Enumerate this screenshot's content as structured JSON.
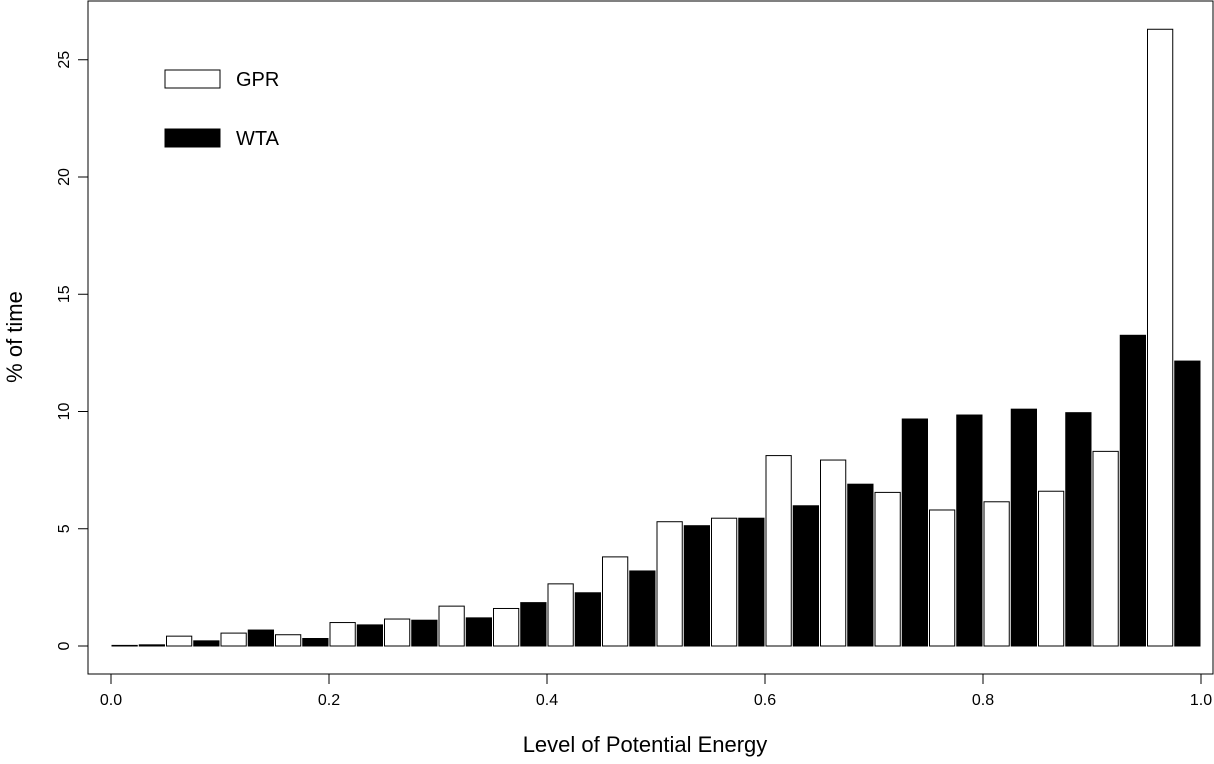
{
  "chart_data": {
    "type": "bar",
    "xlabel": "Level of Potential Energy",
    "ylabel": "% of time",
    "xlim": [
      0.0,
      1.0
    ],
    "ylim": [
      0,
      26.3
    ],
    "x_ticks": [
      "0.0",
      "0.2",
      "0.4",
      "0.6",
      "0.8",
      "1.0"
    ],
    "y_ticks": [
      "0",
      "5",
      "10",
      "15",
      "20",
      "25"
    ],
    "grid": false,
    "legend_position": "top-left",
    "categories": [
      "0.00-0.05",
      "0.05-0.10",
      "0.10-0.15",
      "0.15-0.20",
      "0.20-0.25",
      "0.25-0.30",
      "0.30-0.35",
      "0.35-0.40",
      "0.40-0.45",
      "0.45-0.50",
      "0.50-0.55",
      "0.55-0.60",
      "0.60-0.65",
      "0.65-0.70",
      "0.70-0.75",
      "0.75-0.80",
      "0.80-0.85",
      "0.85-0.90",
      "0.90-0.95",
      "0.95-1.00"
    ],
    "bin_width": 0.05,
    "series": [
      {
        "name": "GPR",
        "color": "#ffffff",
        "values": [
          0.0,
          0.42,
          0.55,
          0.48,
          1.0,
          1.15,
          1.7,
          1.6,
          2.65,
          3.8,
          5.3,
          5.45,
          8.12,
          7.93,
          6.55,
          5.8,
          6.15,
          6.6,
          8.3,
          26.3
        ]
      },
      {
        "name": "WTA",
        "color": "#000000",
        "values": [
          0.05,
          0.22,
          0.68,
          0.32,
          0.9,
          1.1,
          1.2,
          1.85,
          2.27,
          3.2,
          5.13,
          5.45,
          5.98,
          6.9,
          9.68,
          9.85,
          10.1,
          9.95,
          13.25,
          12.15
        ]
      }
    ]
  }
}
